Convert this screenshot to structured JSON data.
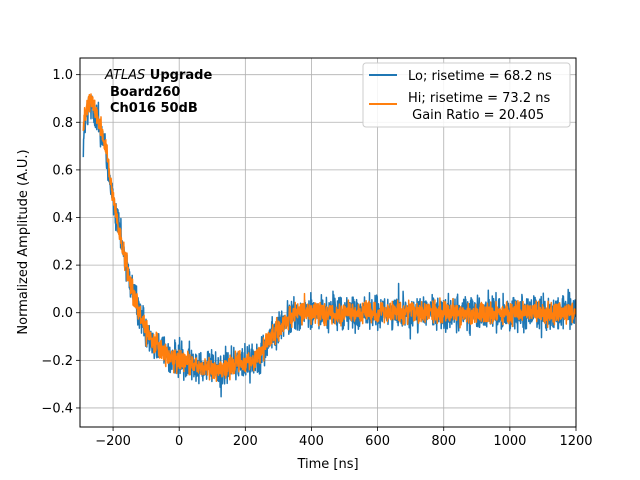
{
  "chart_data": {
    "type": "line",
    "title": "",
    "xlabel": "Time [ns]",
    "ylabel": "Normalized Amplitude (A.U.)",
    "xlim": [
      -300,
      1200
    ],
    "ylim": [
      -0.48,
      1.07
    ],
    "grid": true,
    "xticks": [
      -200,
      0,
      200,
      400,
      600,
      800,
      1000,
      1200
    ],
    "yticks": [
      -0.4,
      -0.2,
      0.0,
      0.2,
      0.4,
      0.6,
      0.8,
      1.0
    ],
    "xtick_labels": [
      "−200",
      "0",
      "200",
      "400",
      "600",
      "800",
      "1000",
      "1200"
    ],
    "ytick_labels": [
      "−0.4",
      "−0.2",
      "0.0",
      "0.2",
      "0.4",
      "0.6",
      "0.8",
      "1.0"
    ],
    "annotation": {
      "line1_italic": "ATLAS",
      "line1_bold": " Upgrade",
      "line2": "Board260",
      "line3": "Ch016 50dB"
    },
    "legend_position": "upper right",
    "legend": {
      "lo_label": "Lo; risetime = 68.2 ns",
      "hi_label_line1": "Hi; risetime = 73.2 ns",
      "hi_label_line2": " Gain Ratio = 20.405"
    },
    "series": [
      {
        "name": "Lo; risetime = 68.2 ns",
        "color": "#1f77b4",
        "noise": 0.045,
        "envelope_x": [
          -290,
          -280,
          -270,
          -260,
          -250,
          -240,
          -230,
          -220,
          -210,
          -200,
          -180,
          -160,
          -140,
          -120,
          -100,
          -80,
          -60,
          -40,
          -20,
          0,
          20,
          40,
          60,
          80,
          100,
          120,
          140,
          160,
          180,
          200,
          220,
          240,
          260,
          280,
          300,
          320,
          340,
          360,
          380,
          400,
          450,
          500,
          600,
          700,
          800,
          900,
          1000,
          1100,
          1200
        ],
        "envelope_y": [
          0.72,
          0.83,
          0.88,
          0.86,
          0.82,
          0.78,
          0.74,
          0.66,
          0.56,
          0.47,
          0.33,
          0.2,
          0.08,
          0.0,
          -0.07,
          -0.12,
          -0.15,
          -0.17,
          -0.19,
          -0.2,
          -0.21,
          -0.22,
          -0.22,
          -0.23,
          -0.23,
          -0.24,
          -0.23,
          -0.22,
          -0.21,
          -0.21,
          -0.2,
          -0.18,
          -0.14,
          -0.1,
          -0.07,
          -0.04,
          -0.02,
          0.0,
          0.0,
          0.0,
          0.0,
          0.0,
          0.0,
          0.0,
          0.0,
          0.0,
          0.0,
          0.0,
          0.0
        ]
      },
      {
        "name": "Hi; risetime = 73.2 ns",
        "color": "#ff7f0e",
        "noise": 0.028,
        "envelope_x": [
          -290,
          -280,
          -270,
          -260,
          -250,
          -240,
          -230,
          -220,
          -210,
          -200,
          -180,
          -160,
          -140,
          -120,
          -100,
          -80,
          -60,
          -40,
          -20,
          0,
          20,
          40,
          60,
          80,
          100,
          120,
          140,
          160,
          180,
          200,
          220,
          240,
          260,
          280,
          300,
          320,
          340,
          360,
          380,
          400,
          450,
          500,
          600,
          700,
          800,
          900,
          1000,
          1100,
          1200
        ],
        "envelope_y": [
          0.78,
          0.88,
          0.9,
          0.87,
          0.83,
          0.79,
          0.74,
          0.67,
          0.57,
          0.48,
          0.33,
          0.2,
          0.08,
          0.0,
          -0.07,
          -0.12,
          -0.15,
          -0.17,
          -0.19,
          -0.2,
          -0.21,
          -0.22,
          -0.22,
          -0.23,
          -0.23,
          -0.24,
          -0.23,
          -0.22,
          -0.21,
          -0.21,
          -0.2,
          -0.18,
          -0.14,
          -0.1,
          -0.07,
          -0.04,
          -0.02,
          0.0,
          0.0,
          0.0,
          0.0,
          0.0,
          0.0,
          0.0,
          0.0,
          0.0,
          0.0,
          0.0,
          0.0
        ]
      }
    ]
  }
}
